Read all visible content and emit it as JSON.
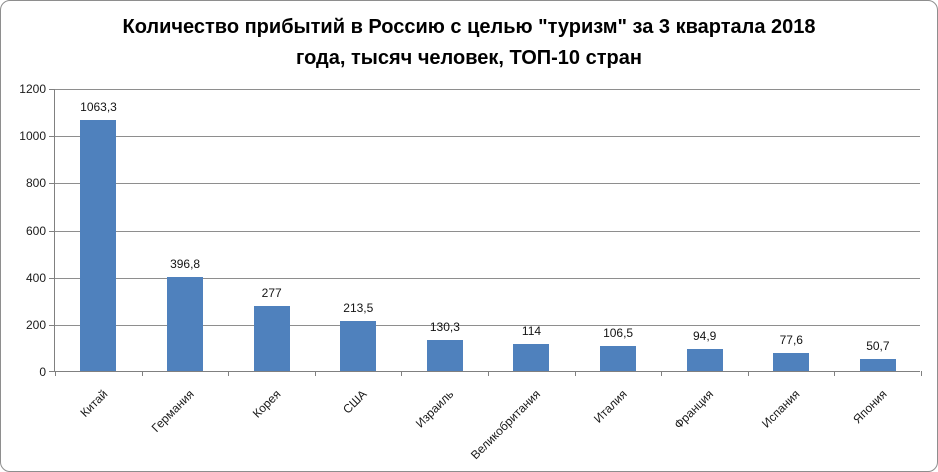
{
  "frame": {
    "background": "#FFFFFF",
    "border_color": "#8E8E8E"
  },
  "chart_data": {
    "type": "bar",
    "title": "Количество прибытий в Россию с целью \"туризм\" за 3 квартала 2018 года, тысяч человек, ТОП-10 стран",
    "title_lines": [
      "Количество прибытий в Россию с целью \"туризм\" за 3 квартала 2018",
      "года, тысяч человек, ТОП-10 стран"
    ],
    "categories": [
      "Китай",
      "Германия",
      "Корея",
      "США",
      "Израиль",
      "Великобритания",
      "Италия",
      "Франция",
      "Испания",
      "Япония"
    ],
    "values": [
      1063.3,
      396.8,
      277,
      213.5,
      130.3,
      114,
      106.5,
      94.9,
      77.6,
      50.7
    ],
    "value_labels": [
      "1063,3",
      "396,8",
      "277",
      "213,5",
      "130,3",
      "114",
      "106,5",
      "94,9",
      "77,6",
      "50,7"
    ],
    "xlabel": "",
    "ylabel": "",
    "ylim": [
      0,
      1200
    ],
    "y_ticks": [
      0,
      200,
      400,
      600,
      800,
      1000,
      1200
    ],
    "grid": true,
    "legend": "none",
    "bar_color": "#4F81BD",
    "gridline_color": "#8E8E8E",
    "axis_color": "#808080",
    "text_color": "#1A1A1A"
  }
}
